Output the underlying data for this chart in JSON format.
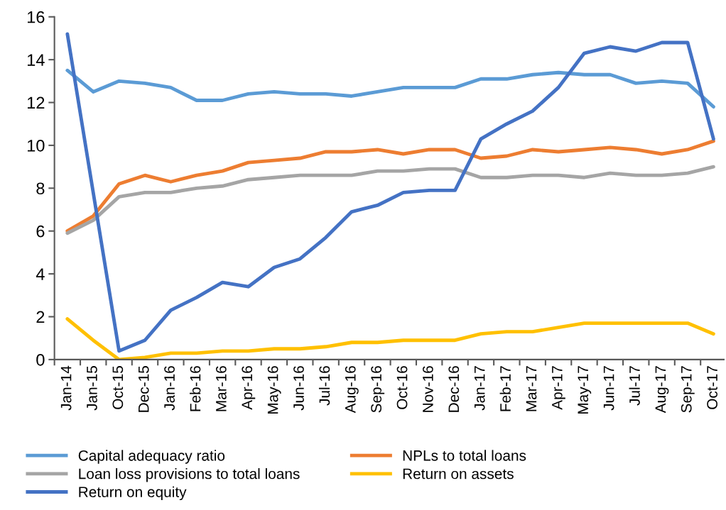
{
  "chart_data": {
    "type": "line",
    "categories": [
      "Jan-14",
      "Jan-15",
      "Oct-15",
      "Dec-15",
      "Jan-16",
      "Feb-16",
      "Mar-16",
      "Apr-16",
      "May-16",
      "Jun-16",
      "Jul-16",
      "Aug-16",
      "Sep-16",
      "Oct-16",
      "Nov-16",
      "Dec-16",
      "Jan-17",
      "Feb-17",
      "Mar-17",
      "Apr-17",
      "May-17",
      "Jun-17",
      "Jul-17",
      "Aug-17",
      "Sep-17",
      "Oct-17"
    ],
    "series": [
      {
        "name": "Capital adequacy ratio",
        "color": "#5b9bd5",
        "values": [
          13.5,
          12.5,
          13.0,
          12.9,
          12.7,
          12.1,
          12.1,
          12.4,
          12.5,
          12.4,
          12.4,
          12.3,
          12.5,
          12.7,
          12.7,
          12.7,
          13.1,
          13.1,
          13.3,
          13.4,
          13.3,
          13.3,
          12.9,
          13.0,
          12.9,
          11.8
        ]
      },
      {
        "name": "NPLs to total loans",
        "color": "#ed7d31",
        "values": [
          6.0,
          6.7,
          8.2,
          8.6,
          8.3,
          8.6,
          8.8,
          9.2,
          9.3,
          9.4,
          9.7,
          9.7,
          9.8,
          9.6,
          9.8,
          9.8,
          9.4,
          9.5,
          9.8,
          9.7,
          9.8,
          9.9,
          9.8,
          9.6,
          9.8,
          10.2
        ]
      },
      {
        "name": "Loan loss provisions to total loans",
        "color": "#a5a5a5",
        "values": [
          5.9,
          6.5,
          7.6,
          7.8,
          7.8,
          8.0,
          8.1,
          8.4,
          8.5,
          8.6,
          8.6,
          8.6,
          8.8,
          8.8,
          8.9,
          8.9,
          8.5,
          8.5,
          8.6,
          8.6,
          8.5,
          8.7,
          8.6,
          8.6,
          8.7,
          9.0
        ]
      },
      {
        "name": "Return on assets",
        "color": "#ffc000",
        "values": [
          1.9,
          0.9,
          0.0,
          0.1,
          0.3,
          0.3,
          0.4,
          0.4,
          0.5,
          0.5,
          0.6,
          0.8,
          0.8,
          0.9,
          0.9,
          0.9,
          1.2,
          1.3,
          1.3,
          1.5,
          1.7,
          1.7,
          1.7,
          1.7,
          1.7,
          1.2
        ]
      },
      {
        "name": "Return on equity",
        "color": "#4472c4",
        "values": [
          15.2,
          7.8,
          0.4,
          0.9,
          2.3,
          2.9,
          3.6,
          3.4,
          4.3,
          4.7,
          5.7,
          6.9,
          7.2,
          7.8,
          7.9,
          7.9,
          10.3,
          11.0,
          11.6,
          12.7,
          14.3,
          14.6,
          14.4,
          14.8,
          14.8,
          10.3
        ]
      }
    ],
    "ylim": [
      0,
      16
    ],
    "yticks": [
      0,
      2,
      4,
      6,
      8,
      10,
      12,
      14,
      16
    ],
    "grid": false,
    "legend": "bottom",
    "marker": "none",
    "line_style": "solid"
  }
}
